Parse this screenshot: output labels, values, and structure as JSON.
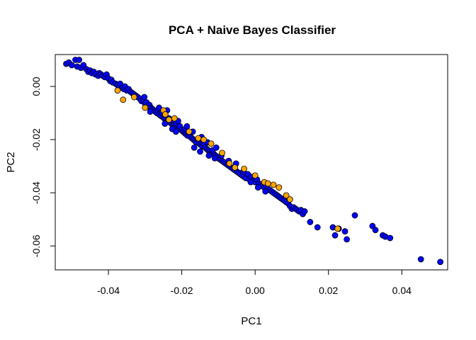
{
  "chart_data": {
    "type": "scatter",
    "title": "PCA + Naive Bayes Classifier",
    "xlabel": "PC1",
    "ylabel": "PC2",
    "xlim": [
      -0.0545,
      0.0525
    ],
    "ylim": [
      -0.069,
      0.012
    ],
    "xticks": [
      -0.04,
      -0.02,
      0.0,
      0.02,
      0.04
    ],
    "xtick_labels": [
      "-0.04",
      "-0.02",
      "0.00",
      "0.02",
      "0.04"
    ],
    "yticks": [
      0.0,
      -0.02,
      -0.04,
      -0.06
    ],
    "ytick_labels": [
      "0.00",
      "-0.02",
      "-0.04",
      "-0.06"
    ],
    "grid": false,
    "legend": "none",
    "series": [
      {
        "color": "#0000ff",
        "points": [
          [
            -0.0515,
            0.0085
          ],
          [
            -0.0508,
            0.009
          ],
          [
            -0.05,
            0.008
          ],
          [
            -0.049,
            0.01
          ],
          [
            -0.048,
            0.01
          ],
          [
            -0.0485,
            0.0075
          ],
          [
            -0.0475,
            0.007
          ],
          [
            -0.0468,
            0.008
          ],
          [
            -0.046,
            0.0065
          ],
          [
            -0.0455,
            0.0055
          ],
          [
            -0.045,
            0.006
          ],
          [
            -0.0445,
            0.005
          ],
          [
            -0.044,
            0.0055
          ],
          [
            -0.0435,
            0.0045
          ],
          [
            -0.0428,
            0.004
          ],
          [
            -0.0425,
            0.005
          ],
          [
            -0.042,
            0.0045
          ],
          [
            -0.0415,
            0.004
          ],
          [
            -0.041,
            0.0035
          ],
          [
            -0.0405,
            0.0045
          ],
          [
            -0.04,
            0.003
          ],
          [
            -0.0395,
            0.002
          ],
          [
            -0.0392,
            0.0025
          ],
          [
            -0.0388,
            0.0015
          ],
          [
            -0.038,
            0.001
          ],
          [
            -0.0375,
            0.0005
          ],
          [
            -0.037,
            0.0
          ],
          [
            -0.0368,
            0.001
          ],
          [
            -0.0362,
            -0.0005
          ],
          [
            -0.0358,
            -0.001
          ],
          [
            -0.0355,
            0.0
          ],
          [
            -0.035,
            -0.0015
          ],
          [
            -0.0345,
            -0.001
          ],
          [
            -0.034,
            -0.002
          ],
          [
            -0.0335,
            -0.0025
          ],
          [
            -0.033,
            -0.003
          ],
          [
            -0.0325,
            -0.0035
          ],
          [
            -0.032,
            -0.004
          ],
          [
            -0.0315,
            -0.0045
          ],
          [
            -0.031,
            -0.0055
          ],
          [
            -0.0305,
            -0.005
          ],
          [
            -0.03,
            -0.0065
          ],
          [
            -0.0296,
            -0.006
          ],
          [
            -0.0292,
            -0.0075
          ],
          [
            -0.0288,
            -0.007
          ],
          [
            -0.0284,
            -0.008
          ],
          [
            -0.028,
            -0.0085
          ],
          [
            -0.0276,
            -0.009
          ],
          [
            -0.0272,
            -0.0095
          ],
          [
            -0.0268,
            -0.01
          ],
          [
            -0.0265,
            -0.009
          ],
          [
            -0.0262,
            -0.0105
          ],
          [
            -0.0258,
            -0.011
          ],
          [
            -0.0255,
            -0.01
          ],
          [
            -0.0252,
            -0.0115
          ],
          [
            -0.0248,
            -0.012
          ],
          [
            -0.0245,
            -0.011
          ],
          [
            -0.0242,
            -0.0125
          ],
          [
            -0.0238,
            -0.013
          ],
          [
            -0.0235,
            -0.012
          ],
          [
            -0.0232,
            -0.0135
          ],
          [
            -0.0228,
            -0.014
          ],
          [
            -0.0225,
            -0.013
          ],
          [
            -0.0222,
            -0.0145
          ],
          [
            -0.0218,
            -0.015
          ],
          [
            -0.0215,
            -0.014
          ],
          [
            -0.0212,
            -0.0155
          ],
          [
            -0.0208,
            -0.016
          ],
          [
            -0.0205,
            -0.015
          ],
          [
            -0.02,
            -0.0165
          ],
          [
            -0.0196,
            -0.017
          ],
          [
            -0.0192,
            -0.0175
          ],
          [
            -0.0188,
            -0.018
          ],
          [
            -0.0184,
            -0.0185
          ],
          [
            -0.018,
            -0.0175
          ],
          [
            -0.0176,
            -0.019
          ],
          [
            -0.0172,
            -0.0195
          ],
          [
            -0.0168,
            -0.02
          ],
          [
            -0.0164,
            -0.0205
          ],
          [
            -0.016,
            -0.021
          ],
          [
            -0.0156,
            -0.02
          ],
          [
            -0.0152,
            -0.0215
          ],
          [
            -0.0148,
            -0.022
          ],
          [
            -0.0144,
            -0.0225
          ],
          [
            -0.014,
            -0.0215
          ],
          [
            -0.0136,
            -0.023
          ],
          [
            -0.0132,
            -0.0235
          ],
          [
            -0.0128,
            -0.024
          ],
          [
            -0.0124,
            -0.0245
          ],
          [
            -0.012,
            -0.025
          ],
          [
            -0.0116,
            -0.024
          ],
          [
            -0.0112,
            -0.0255
          ],
          [
            -0.0108,
            -0.026
          ],
          [
            -0.0104,
            -0.0265
          ],
          [
            -0.01,
            -0.027
          ],
          [
            -0.0095,
            -0.0275
          ],
          [
            -0.009,
            -0.028
          ],
          [
            -0.0085,
            -0.0285
          ],
          [
            -0.008,
            -0.029
          ],
          [
            -0.0075,
            -0.0295
          ],
          [
            -0.007,
            -0.03
          ],
          [
            -0.0065,
            -0.0305
          ],
          [
            -0.006,
            -0.031
          ],
          [
            -0.0055,
            -0.0315
          ],
          [
            -0.005,
            -0.032
          ],
          [
            -0.0045,
            -0.0325
          ],
          [
            -0.004,
            -0.033
          ],
          [
            -0.0035,
            -0.0335
          ],
          [
            -0.003,
            -0.034
          ],
          [
            -0.0025,
            -0.0345
          ],
          [
            -0.002,
            -0.033
          ],
          [
            -0.0015,
            -0.035
          ],
          [
            -0.001,
            -0.034
          ],
          [
            -0.0005,
            -0.0355
          ],
          [
            0.0,
            -0.036
          ],
          [
            0.0005,
            -0.035
          ],
          [
            0.001,
            -0.0365
          ],
          [
            0.0015,
            -0.037
          ],
          [
            0.002,
            -0.0375
          ],
          [
            0.0025,
            -0.038
          ],
          [
            0.003,
            -0.037
          ],
          [
            0.0035,
            -0.0385
          ],
          [
            0.004,
            -0.039
          ],
          [
            0.0045,
            -0.0395
          ],
          [
            0.005,
            -0.04
          ],
          [
            0.0055,
            -0.0405
          ],
          [
            0.006,
            -0.041
          ],
          [
            0.0065,
            -0.0415
          ],
          [
            0.007,
            -0.042
          ],
          [
            0.0075,
            -0.0425
          ],
          [
            0.008,
            -0.043
          ],
          [
            0.0085,
            -0.0435
          ],
          [
            0.009,
            -0.044
          ],
          [
            0.0095,
            -0.045
          ],
          [
            0.01,
            -0.046
          ],
          [
            0.0105,
            -0.0455
          ],
          [
            0.011,
            -0.046
          ],
          [
            0.0115,
            -0.0465
          ],
          [
            0.012,
            -0.047
          ],
          [
            0.0125,
            -0.0465
          ],
          [
            0.013,
            -0.048
          ],
          [
            0.0135,
            -0.047
          ],
          [
            0.015,
            -0.051
          ],
          [
            0.017,
            -0.053
          ],
          [
            0.0212,
            -0.053
          ],
          [
            0.0218,
            -0.056
          ],
          [
            0.0228,
            -0.0535
          ],
          [
            0.0245,
            -0.0545
          ],
          [
            0.025,
            -0.0575
          ],
          [
            0.0272,
            -0.0485
          ],
          [
            0.032,
            -0.0525
          ],
          [
            0.0328,
            -0.054
          ],
          [
            0.0348,
            -0.056
          ],
          [
            0.0355,
            -0.0565
          ],
          [
            0.0368,
            -0.057
          ],
          [
            0.0452,
            -0.065
          ],
          [
            0.0505,
            -0.066
          ],
          [
            -0.024,
            -0.009
          ],
          [
            -0.0226,
            -0.016
          ],
          [
            -0.021,
            -0.013
          ],
          [
            -0.019,
            -0.016
          ],
          [
            -0.017,
            -0.017
          ],
          [
            -0.015,
            -0.0245
          ],
          [
            -0.013,
            -0.021
          ],
          [
            -0.011,
            -0.027
          ],
          [
            -0.0092,
            -0.026
          ],
          [
            -0.0072,
            -0.028
          ],
          [
            -0.0052,
            -0.029
          ],
          [
            -0.0032,
            -0.032
          ],
          [
            -0.0012,
            -0.036
          ],
          [
            0.0008,
            -0.038
          ],
          [
            0.0028,
            -0.0395
          ],
          [
            -0.0302,
            -0.004
          ],
          [
            -0.0286,
            -0.0095
          ],
          [
            -0.0262,
            -0.008
          ],
          [
            -0.0246,
            -0.014
          ],
          [
            -0.0216,
            -0.017
          ],
          [
            -0.0186,
            -0.015
          ],
          [
            -0.0166,
            -0.023
          ],
          [
            -0.0146,
            -0.019
          ],
          [
            -0.0126,
            -0.026
          ],
          [
            -0.0106,
            -0.023
          ]
        ]
      },
      {
        "color": "#ffa500",
        "points": [
          [
            -0.0375,
            -0.0015
          ],
          [
            -0.036,
            -0.005
          ],
          [
            -0.033,
            -0.004
          ],
          [
            -0.03,
            -0.008
          ],
          [
            -0.025,
            -0.009
          ],
          [
            -0.0245,
            -0.0105
          ],
          [
            -0.0235,
            -0.0125
          ],
          [
            -0.022,
            -0.012
          ],
          [
            -0.018,
            -0.017
          ],
          [
            -0.0155,
            -0.0195
          ],
          [
            -0.014,
            -0.02
          ],
          [
            -0.012,
            -0.0215
          ],
          [
            -0.009,
            -0.025
          ],
          [
            -0.007,
            -0.029
          ],
          [
            -0.0055,
            -0.0305
          ],
          [
            -0.003,
            -0.031
          ],
          [
            0.0,
            -0.0335
          ],
          [
            0.0025,
            -0.036
          ],
          [
            0.0035,
            -0.0365
          ],
          [
            0.005,
            -0.037
          ],
          [
            0.0065,
            -0.038
          ],
          [
            0.0085,
            -0.041
          ],
          [
            0.0095,
            -0.0425
          ],
          [
            0.0225,
            -0.0535
          ]
        ]
      }
    ]
  }
}
